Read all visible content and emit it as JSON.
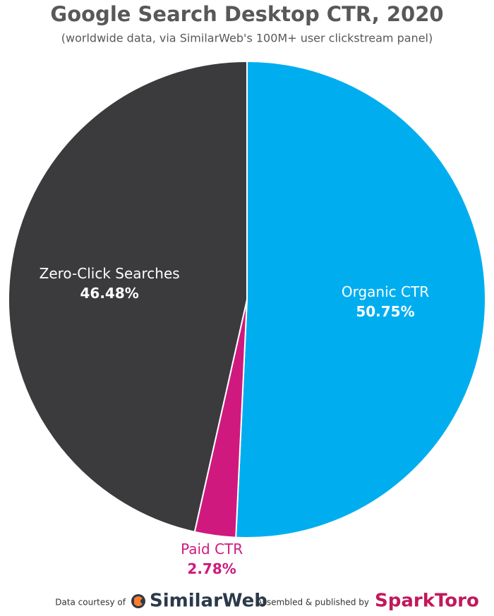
{
  "chart_data": {
    "type": "pie",
    "title": "Google Search Desktop CTR, 2020",
    "subtitle": "(worldwide data, via SimilarWeb's 100M+ user clickstream panel)",
    "categories": [
      "Organic CTR",
      "Paid CTR",
      "Zero-Click Searches"
    ],
    "values": [
      50.75,
      2.78,
      46.48
    ],
    "value_labels": [
      "50.75%",
      "2.78%",
      "46.48%"
    ],
    "colors": [
      "#00aeef",
      "#d0197f",
      "#3b3a3c"
    ]
  },
  "footer": {
    "source_prefix": "Data courtesy of",
    "source": "SimilarWeb",
    "publisher_prefix": "Assembled & published by",
    "publisher": "SparkToro"
  }
}
